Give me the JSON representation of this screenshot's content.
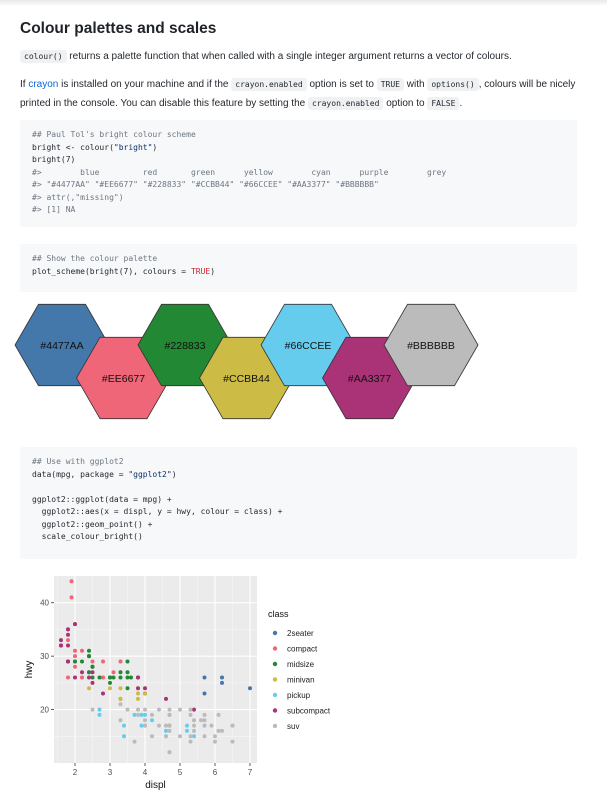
{
  "heading": "Colour palettes and scales",
  "intro": {
    "code": "colour()",
    "text": " returns a palette function that when called with a single integer argument returns a vector of colours."
  },
  "para2": {
    "t1": "If ",
    "link": "crayon",
    "t2": " is installed on your machine and if the ",
    "c1": "crayon.enabled",
    "t3": " option is set to ",
    "c2": "TRUE",
    "t4": " with ",
    "c3": "options()",
    "t5": ", colours will be nicely printed in the console. You can disable this feature by setting the ",
    "c4": "crayon.enabled",
    "t6": " option to ",
    "c5": "FALSE",
    "t7": "."
  },
  "code1": {
    "l1": "## Paul Tol's bright colour scheme",
    "l2a": "bright <- colour(",
    "l2b": "\"bright\"",
    "l2c": ")",
    "l3": "bright(7)",
    "l4": "#>        blue         red       green      yellow        cyan      purple        grey",
    "l5": "#> \"#4477AA\" \"#EE6677\" \"#228833\" \"#CCBB44\" \"#66CCEE\" \"#AA3377\" \"#BBBBBB\"",
    "l6": "#> attr(,\"missing\")",
    "l7": "#> [1] NA"
  },
  "code2": {
    "l1": "## Show the colour palette",
    "l2a": "plot_scheme(bright(7), colours = ",
    "l2b": "TRUE",
    "l2c": ")"
  },
  "hexes": [
    {
      "label": "#4477AA",
      "color": "#4477AA"
    },
    {
      "label": "#EE6677",
      "color": "#EE6677"
    },
    {
      "label": "#228833",
      "color": "#228833"
    },
    {
      "label": "#CCBB44",
      "color": "#CCBB44"
    },
    {
      "label": "#66CCEE",
      "color": "#66CCEE"
    },
    {
      "label": "#AA3377",
      "color": "#AA3377"
    },
    {
      "label": "#BBBBBB",
      "color": "#BBBBBB"
    }
  ],
  "code3": {
    "l1": "## Use with ggplot2",
    "l2a": "data(mpg, package = ",
    "l2b": "\"ggplot2\"",
    "l2c": ")",
    "l3": "ggplot2::ggplot(data = mpg) +",
    "l4": "  ggplot2::aes(x = displ, y = hwy, colour = class) +",
    "l5": "  ggplot2::geom_point() +",
    "l6": "  scale_colour_bright()"
  },
  "chart_data": {
    "type": "scatter",
    "title": "",
    "xlabel": "displ",
    "ylabel": "hwy",
    "xlim": [
      1.4,
      7.2
    ],
    "ylim": [
      10,
      45
    ],
    "x_ticks": [
      2,
      3,
      4,
      5,
      6,
      7
    ],
    "y_ticks": [
      20,
      30,
      40
    ],
    "grid": true,
    "legend_title": "class",
    "legend_position": "right",
    "series": [
      {
        "name": "2seater",
        "color": "#4477AA",
        "points": [
          [
            5.7,
            26
          ],
          [
            5.7,
            23
          ],
          [
            6.2,
            26
          ],
          [
            6.2,
            25
          ],
          [
            7.0,
            24
          ]
        ]
      },
      {
        "name": "compact",
        "color": "#EE6677",
        "points": [
          [
            1.8,
            29
          ],
          [
            1.8,
            29
          ],
          [
            2.0,
            31
          ],
          [
            2.0,
            30
          ],
          [
            2.8,
            26
          ],
          [
            2.8,
            26
          ],
          [
            3.1,
            27
          ],
          [
            1.8,
            26
          ],
          [
            2.0,
            28
          ],
          [
            2.0,
            29
          ],
          [
            2.4,
            27
          ],
          [
            2.4,
            30
          ],
          [
            2.2,
            26
          ],
          [
            2.5,
            29
          ],
          [
            3.0,
            26
          ],
          [
            3.3,
            29
          ],
          [
            3.0,
            26
          ],
          [
            1.8,
            33
          ],
          [
            1.8,
            35
          ],
          [
            1.9,
            44
          ],
          [
            1.9,
            41
          ],
          [
            2.0,
            29
          ],
          [
            2.5,
            28
          ],
          [
            2.8,
            29
          ],
          [
            2.2,
            31
          ],
          [
            2.4,
            30
          ]
        ]
      },
      {
        "name": "midsize",
        "color": "#228833",
        "points": [
          [
            2.4,
            27
          ],
          [
            2.4,
            30
          ],
          [
            3.1,
            26
          ],
          [
            3.5,
            29
          ],
          [
            3.6,
            26
          ],
          [
            2.5,
            26
          ],
          [
            2.5,
            28
          ],
          [
            3.3,
            26
          ],
          [
            3.0,
            26
          ],
          [
            3.3,
            27
          ],
          [
            3.8,
            26
          ],
          [
            2.4,
            31
          ],
          [
            2.4,
            30
          ],
          [
            3.5,
            26
          ],
          [
            3.5,
            24
          ],
          [
            3.0,
            25
          ],
          [
            3.0,
            26
          ],
          [
            4.0,
            23
          ],
          [
            3.5,
            27
          ],
          [
            1.8,
            29
          ],
          [
            2.0,
            29
          ],
          [
            2.7,
            26
          ],
          [
            2.2,
            29
          ],
          [
            2.5,
            28
          ]
        ]
      },
      {
        "name": "minivan",
        "color": "#CCBB44",
        "points": [
          [
            2.4,
            24
          ],
          [
            3.0,
            24
          ],
          [
            3.3,
            22
          ],
          [
            3.3,
            22
          ],
          [
            3.3,
            24
          ],
          [
            3.8,
            24
          ],
          [
            3.8,
            22
          ],
          [
            4.0,
            23
          ],
          [
            3.8,
            23
          ],
          [
            3.3,
            22
          ]
        ]
      },
      {
        "name": "pickup",
        "color": "#66CCEE",
        "points": [
          [
            2.7,
            20
          ],
          [
            3.4,
            15
          ],
          [
            3.9,
            17
          ],
          [
            4.7,
            17
          ],
          [
            4.7,
            12
          ],
          [
            5.2,
            17
          ],
          [
            5.7,
            17
          ],
          [
            3.7,
            19
          ],
          [
            4.0,
            17
          ],
          [
            4.6,
            16
          ],
          [
            5.4,
            15
          ],
          [
            2.7,
            19
          ],
          [
            4.0,
            19
          ],
          [
            4.2,
            18
          ],
          [
            4.7,
            17
          ],
          [
            3.4,
            17
          ],
          [
            4.6,
            15
          ],
          [
            5.2,
            16
          ],
          [
            3.9,
            19
          ]
        ]
      },
      {
        "name": "subcompact",
        "color": "#AA3377",
        "points": [
          [
            1.6,
            33
          ],
          [
            1.6,
            32
          ],
          [
            1.6,
            32
          ],
          [
            1.8,
            29
          ],
          [
            1.8,
            32
          ],
          [
            1.8,
            34
          ],
          [
            2.0,
            36
          ],
          [
            2.0,
            36
          ],
          [
            2.4,
            26
          ],
          [
            2.5,
            27
          ],
          [
            2.5,
            25
          ],
          [
            2.2,
            27
          ],
          [
            2.0,
            26
          ],
          [
            3.8,
            24
          ],
          [
            4.0,
            24
          ],
          [
            4.6,
            22
          ],
          [
            5.4,
            20
          ],
          [
            3.8,
            26
          ],
          [
            1.8,
            35
          ],
          [
            2.8,
            23
          ]
        ]
      },
      {
        "name": "suv",
        "color": "#BBBBBB",
        "points": [
          [
            3.5,
            20
          ],
          [
            4.7,
            19
          ],
          [
            5.3,
            20
          ],
          [
            5.4,
            18
          ],
          [
            6.5,
            17
          ],
          [
            4.0,
            17
          ],
          [
            4.6,
            17
          ],
          [
            5.3,
            14
          ],
          [
            5.7,
            15
          ],
          [
            4.7,
            17
          ],
          [
            2.5,
            20
          ],
          [
            4.0,
            18
          ],
          [
            4.6,
            17
          ],
          [
            5.0,
            15
          ],
          [
            5.4,
            17
          ],
          [
            4.0,
            20
          ],
          [
            3.3,
            18
          ],
          [
            4.2,
            15
          ],
          [
            4.2,
            19
          ],
          [
            6.1,
            16
          ],
          [
            5.9,
            17
          ],
          [
            4.4,
            17
          ],
          [
            5.3,
            15
          ],
          [
            3.3,
            21
          ],
          [
            3.8,
            19
          ],
          [
            4.4,
            20
          ],
          [
            4.7,
            19
          ],
          [
            5.7,
            17
          ],
          [
            6.5,
            14
          ],
          [
            5.0,
            20
          ],
          [
            6.0,
            15
          ],
          [
            5.6,
            18
          ],
          [
            3.7,
            14
          ],
          [
            3.8,
            20
          ],
          [
            4.0,
            17
          ],
          [
            4.6,
            15
          ],
          [
            4.7,
            16
          ],
          [
            5.7,
            18
          ],
          [
            4.7,
            12
          ],
          [
            5.3,
            19
          ],
          [
            6.5,
            17
          ],
          [
            6.2,
            16
          ],
          [
            4.7,
            20
          ],
          [
            6.1,
            19
          ],
          [
            5.4,
            16
          ],
          [
            6.0,
            14
          ],
          [
            5.7,
            19
          ]
        ]
      }
    ]
  }
}
